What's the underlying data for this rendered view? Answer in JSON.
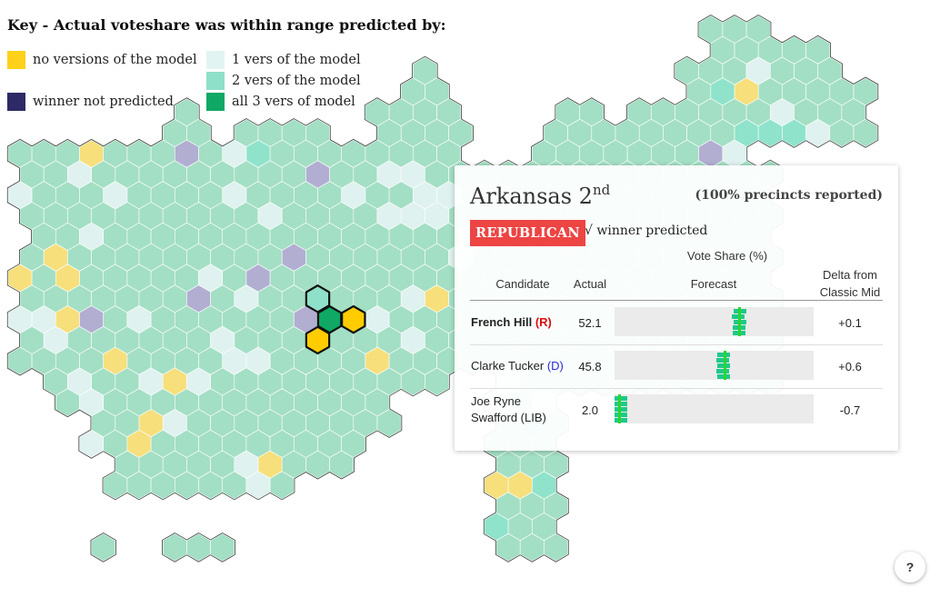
{
  "key": {
    "title": "Key - Actual voteshare was within range predicted by:",
    "items": [
      {
        "label": "no versions of the model",
        "color": "#ffd11a"
      },
      {
        "label": "winner not predicted",
        "color": "#2e2a66"
      },
      {
        "label": "1 vers of the model",
        "color": "#e2f4f2"
      },
      {
        "label": "2 vers of the model",
        "color": "#8fe0c8"
      },
      {
        "label": "all 3 vers of model",
        "color": "#0fa865"
      }
    ]
  },
  "map_colors": {
    "base": "#a3dfc4",
    "one": "#dff2ef",
    "two": "#8fe3cb",
    "none": "#f7df7c",
    "notpred": "#b1aed1",
    "highlight_none": "#ffcc00",
    "highlight_all3": "#0fa865",
    "highlight_two": "#8fe0c8"
  },
  "district": {
    "name": "Arkansas 2",
    "ordinal_suffix": "nd",
    "precincts": "(100% precincts reported)",
    "party_badge": "REPUBLICAN",
    "winner_note": "√ winner predicted"
  },
  "table": {
    "group_header": "Vote Share (%)",
    "headers": {
      "candidate": "Candidate",
      "actual": "Actual",
      "forecast": "Forecast",
      "delta_line1": "Delta from",
      "delta_line2": "Classic Mid"
    },
    "rows": [
      {
        "name": "French Hill",
        "party": "(R)",
        "actual": "52.1",
        "delta": "+0.1",
        "forecast_ticks": [
          52.4,
          51.7,
          52.3,
          51.8,
          52.0
        ],
        "bold": true
      },
      {
        "name": "Clarke Tucker",
        "party": "(D)",
        "actual": "45.8",
        "delta": "+0.6",
        "forecast_ticks": [
          45.4,
          45.0,
          45.5,
          45.2,
          45.3
        ],
        "bold": false
      },
      {
        "name_line1": "Joe Ryne",
        "name_line2": "Swafford (LIB)",
        "actual": "2.0",
        "delta": "-0.7",
        "forecast_ticks": [
          2.8,
          2.6,
          2.7,
          2.5,
          2.7
        ],
        "bold": false
      }
    ]
  },
  "help_label": "?"
}
